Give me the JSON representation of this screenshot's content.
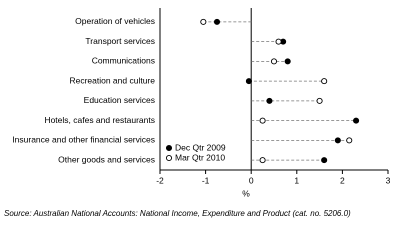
{
  "chart_data": {
    "type": "dot",
    "categories": [
      "Operation of vehicles",
      "Transport services",
      "Communications",
      "Recreation and culture",
      "Education services",
      "Hotels, cafes and restaurants",
      "Insurance and other financial services",
      "Other goods and services"
    ],
    "series": [
      {
        "name": "Dec Qtr 2009",
        "color": "#000000",
        "marker": "filled",
        "values": [
          -0.75,
          0.7,
          0.8,
          -0.05,
          0.4,
          2.3,
          1.9,
          1.6
        ]
      },
      {
        "name": "Mar Qtr 2010",
        "color": "#000000",
        "marker": "open",
        "values": [
          -1.05,
          0.6,
          0.5,
          1.6,
          1.5,
          0.25,
          2.15,
          0.25
        ]
      }
    ],
    "xlabel": "%",
    "xlim": [
      -2,
      3
    ],
    "xticks": [
      -2,
      -1,
      0,
      1,
      2,
      3
    ],
    "grid": false,
    "legend": "lower left",
    "source": "Source: Australian National Accounts: National Income, Expenditure and Product (cat. no. 5206.0)"
  }
}
